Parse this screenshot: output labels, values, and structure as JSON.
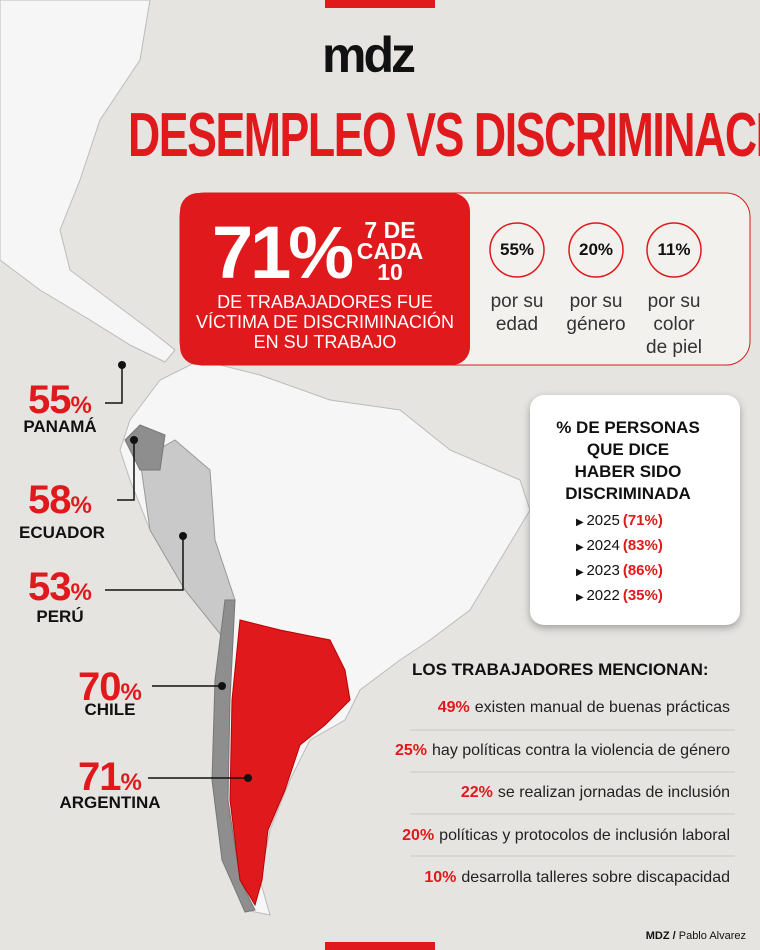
{
  "brand": "mdz",
  "title": "DESEMPLEO VS DISCRIMINACIÓN",
  "headline": {
    "value": "71%",
    "fraction": [
      "7 DE",
      "CADA",
      "10"
    ],
    "text": [
      "DE TRABAJADORES FUE",
      "VÍCTIMA DE DISCRIMINACIÓN",
      "EN SU TRABAJO"
    ]
  },
  "reasons": [
    {
      "value": "55%",
      "label": [
        "por su",
        "edad"
      ]
    },
    {
      "value": "20%",
      "label": [
        "por su",
        "género"
      ]
    },
    {
      "value": "11%",
      "label": [
        "por su",
        "color",
        "de piel"
      ]
    }
  ],
  "countries": [
    {
      "value": "55",
      "unit": "%",
      "name": "PANAMÁ"
    },
    {
      "value": "58",
      "unit": "%",
      "name": "ECUADOR"
    },
    {
      "value": "53",
      "unit": "%",
      "name": "PERÚ"
    },
    {
      "value": "70",
      "unit": "%",
      "name": "CHILE"
    },
    {
      "value": "71",
      "unit": "%",
      "name": "ARGENTINA"
    }
  ],
  "history": {
    "title": [
      "% DE PERSONAS",
      "QUE DICE",
      "HABER SIDO",
      "DISCRIMINADA"
    ],
    "items": [
      {
        "year": "2025",
        "value": "(71%)"
      },
      {
        "year": "2024",
        "value": "(83%)"
      },
      {
        "year": "2023",
        "value": "(86%)"
      },
      {
        "year": "2022",
        "value": "(35%)"
      }
    ]
  },
  "mentions": {
    "title": "LOS TRABAJADORES MENCIONAN:",
    "items": [
      {
        "value": "49%",
        "text": "existen manual de buenas prácticas"
      },
      {
        "value": "25%",
        "text": "hay políticas contra la violencia de género"
      },
      {
        "value": "22%",
        "text": "se realizan jornadas de inclusión"
      },
      {
        "value": "20%",
        "text": "políticas y protocolos de inclusión laboral"
      },
      {
        "value": "10%",
        "text": "desarrolla talleres sobre discapacidad"
      }
    ]
  },
  "footer": {
    "brand": "MDZ /",
    "author": "Pablo Alvarez"
  }
}
